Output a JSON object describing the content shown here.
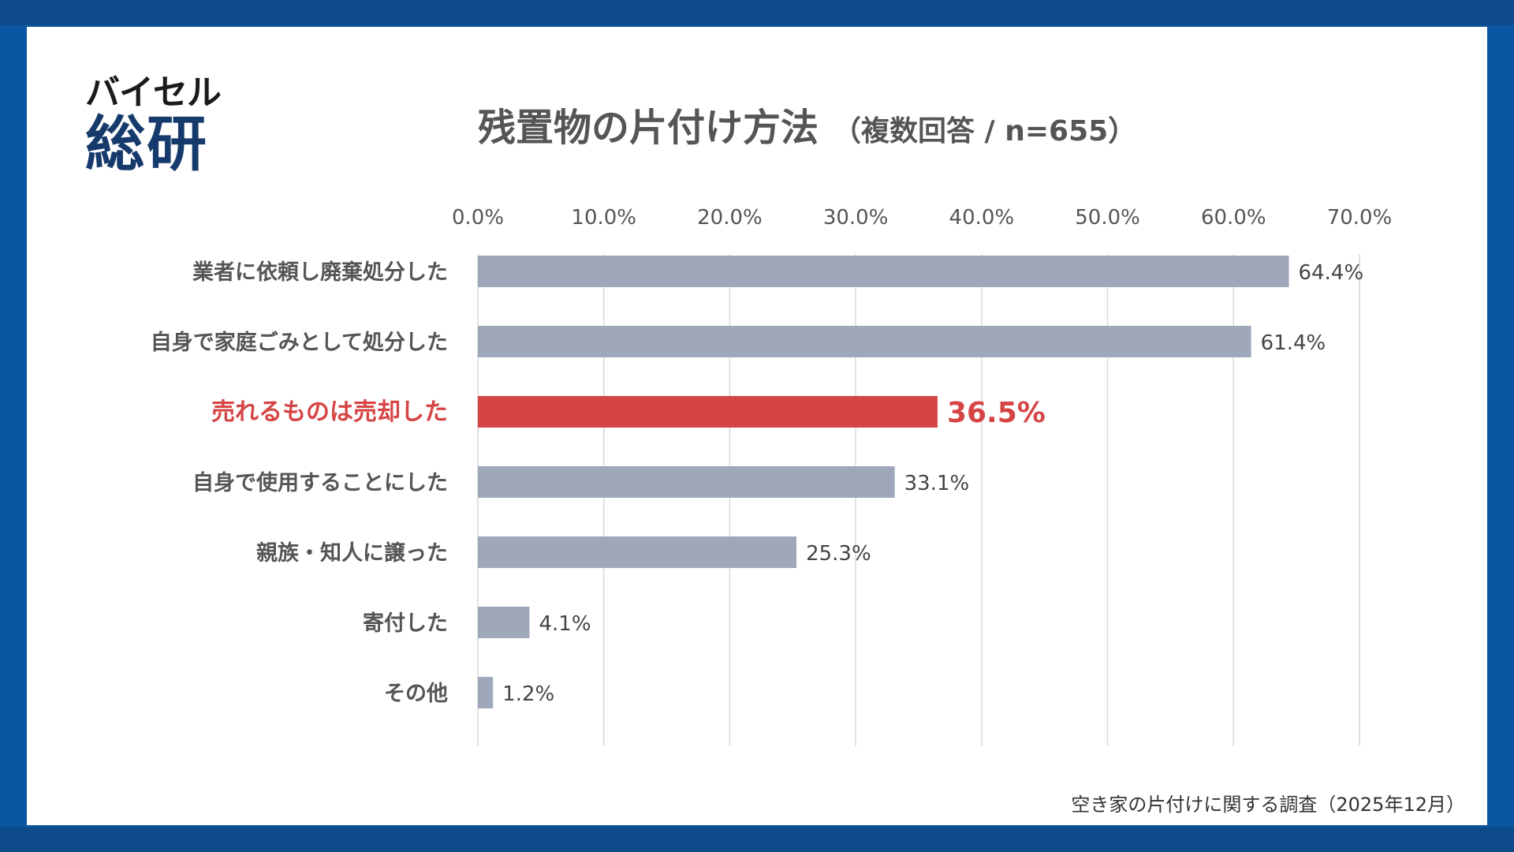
{
  "logo": {
    "line1": "バイセル",
    "line2": "総研"
  },
  "title": {
    "main": "残置物の片付け方法",
    "sub": "（複数回答 / n=655）"
  },
  "source": "空き家の片付けに関する調査（2025年12月）",
  "colors": {
    "bar": "#9fa8ba",
    "highlight": "#d64545",
    "label": "#555555",
    "grid": "#d9d9d9"
  },
  "chart_data": {
    "type": "bar",
    "orientation": "horizontal",
    "title": "残置物の片付け方法",
    "subtitle": "（複数回答 / n=655）",
    "categories": [
      "業者に依頼し廃棄処分した",
      "自身で家庭ごみとして処分した",
      "売れるものは売却した",
      "自身で使用することにした",
      "親族・知人に譲った",
      "寄付した",
      "その他"
    ],
    "values": [
      64.4,
      61.4,
      36.5,
      33.1,
      25.3,
      4.1,
      1.2
    ],
    "value_labels": [
      "64.4%",
      "61.4%",
      "36.5%",
      "33.1%",
      "25.3%",
      "4.1%",
      "1.2%"
    ],
    "highlight_index": 2,
    "xlim": [
      0,
      70
    ],
    "ticks": [
      0,
      10,
      20,
      30,
      40,
      50,
      60,
      70
    ],
    "tick_labels": [
      "0.0%",
      "10.0%",
      "20.0%",
      "30.0%",
      "40.0%",
      "50.0%",
      "60.0%",
      "70.0%"
    ],
    "axis_position": "top",
    "grid": true,
    "legend": false,
    "xlabel": "",
    "ylabel": ""
  }
}
